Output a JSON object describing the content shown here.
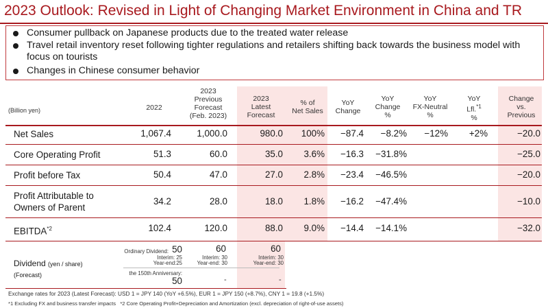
{
  "title": "2023 Outlook: Revised in Light of Changing Market Environment in China and TR",
  "bullets": [
    "Consumer pullback on Japanese products due to the treated water release",
    "Travel retail inventory reset following tighter regulations and retailers shifting back towards the business model with focus on tourists",
    "Changes in Chinese consumer behavior"
  ],
  "table": {
    "unit": "(Billion yen)",
    "headers": {
      "y2022": "2022",
      "prev": [
        "2023",
        "Previous",
        "Forecast",
        "(Feb. 2023)"
      ],
      "latest": [
        "2023",
        "Latest",
        "Forecast"
      ],
      "pct_sales": [
        "% of",
        "Net Sales"
      ],
      "yoy": [
        "YoY",
        "Change"
      ],
      "yoy_pct": [
        "YoY",
        "Change",
        "%"
      ],
      "yoy_fx": [
        "YoY",
        "FX-Neutral",
        "%"
      ],
      "yoy_lfl": [
        "YoY",
        "Lfl.",
        "*1",
        "%"
      ],
      "change_prev": [
        "Change",
        "vs.",
        "Previous"
      ]
    },
    "rows": [
      {
        "label": "Net Sales",
        "y2022": "1,067.4",
        "prev": "1,000.0",
        "latest": "980.0",
        "pct_sales": "100%",
        "yoy": "−87.4",
        "yoy_pct": "−8.2%",
        "yoy_fx": "−12%",
        "yoy_lfl": "+2%",
        "change_prev": "−20.0"
      },
      {
        "label": "Core Operating Profit",
        "y2022": "51.3",
        "prev": "60.0",
        "latest": "35.0",
        "pct_sales": "3.6%",
        "yoy": "−16.3",
        "yoy_pct": "−31.8%",
        "yoy_fx": "",
        "yoy_lfl": "",
        "change_prev": "−25.0"
      },
      {
        "label": "Profit before Tax",
        "y2022": "50.4",
        "prev": "47.0",
        "latest": "27.0",
        "pct_sales": "2.8%",
        "yoy": "−23.4",
        "yoy_pct": "−46.5%",
        "yoy_fx": "",
        "yoy_lfl": "",
        "change_prev": "−20.0"
      },
      {
        "label_lines": [
          "Profit Attributable to",
          "Owners of Parent"
        ],
        "y2022": "34.2",
        "prev": "28.0",
        "latest": "18.0",
        "pct_sales": "1.8%",
        "yoy": "−16.2",
        "yoy_pct": "−47.4%",
        "yoy_fx": "",
        "yoy_lfl": "",
        "change_prev": "−10.0"
      },
      {
        "label": "EBITDA",
        "label_sup": "*2",
        "y2022": "102.4",
        "prev": "120.0",
        "latest": "88.0",
        "pct_sales": "9.0%",
        "yoy": "−14.4",
        "yoy_pct": "−14.1%",
        "yoy_fx": "",
        "yoy_lfl": "",
        "change_prev": "−32.0"
      }
    ],
    "dividend": {
      "label": "Dividend",
      "label_unit": "(yen / share)",
      "label_sub": "(Forecast)",
      "y2022": {
        "ordinary_label": "Ordinary Dividend:",
        "ordinary": "50",
        "interim": "Interim: 25",
        "yearend": "Year-end:25",
        "anniv_label": "the 150th Anniversary:",
        "anniv": "50"
      },
      "prev": {
        "ordinary": "60",
        "interim": "Interim: 30",
        "yearend": "Year-end: 30",
        "anniv": "-"
      },
      "latest": {
        "ordinary": "60",
        "interim": "Interim: 30",
        "yearend": "Year-end: 30",
        "anniv": "-"
      }
    }
  },
  "footnotes": {
    "exchange": "Exchange rates for 2023 (Latest Forecast): USD 1 = JPY 140 (YoY +6.5%), EUR 1 = JPY 150 (+8.7%), CNY 1 = 19.8 (+1.5%)",
    "notes": "*1 Excluding FX and business transfer impacts   *2 Core Operating Profit+Depreciation and Amortization (excl. depreciation of right-of-use assets)"
  },
  "colors": {
    "accent": "#a8191e",
    "highlight": "#fbe5e4"
  }
}
